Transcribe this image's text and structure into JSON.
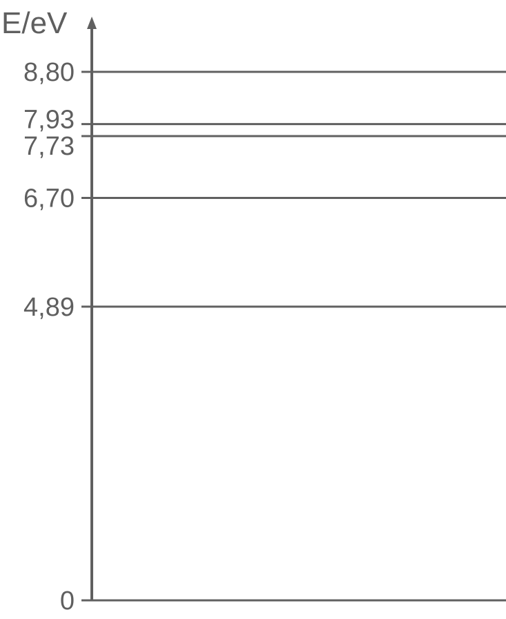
{
  "chart_data": {
    "type": "energy-level-diagram",
    "ylabel": "E/eV",
    "ylim": [
      0,
      8.8
    ],
    "levels": [
      {
        "value": 0,
        "label": "0"
      },
      {
        "value": 4.89,
        "label": "4,89"
      },
      {
        "value": 6.7,
        "label": "6,70"
      },
      {
        "value": 7.73,
        "label": "7,73"
      },
      {
        "value": 7.93,
        "label": "7,93"
      },
      {
        "value": 8.8,
        "label": "8,80"
      }
    ],
    "color": "#606060"
  }
}
